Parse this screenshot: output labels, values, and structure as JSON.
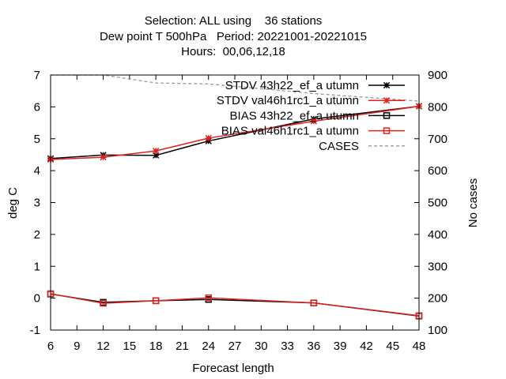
{
  "header": {
    "line1": "Selection: ALL using    36 stations",
    "line2": "Dew point T 500hPa   Period: 20221001-20221015",
    "line3": "Hours:  00,06,12,18"
  },
  "chart_data": {
    "type": "line",
    "xlabel": "Forecast length",
    "ylabel": "deg C",
    "y2label": "No cases",
    "xlim": [
      6,
      48
    ],
    "ylim": [
      -1,
      7
    ],
    "y2lim": [
      100,
      900
    ],
    "xticks": [
      "6",
      "9",
      "12",
      "15",
      "18",
      "21",
      "24",
      "27",
      "30",
      "33",
      "36",
      "39",
      "42",
      "45",
      "48"
    ],
    "yticks": [
      "-1",
      "0",
      "1",
      "2",
      "3",
      "4",
      "5",
      "6",
      "7"
    ],
    "y2ticks": [
      "100",
      "200",
      "300",
      "400",
      "500",
      "600",
      "700",
      "800",
      "900"
    ],
    "x": [
      6,
      12,
      18,
      24,
      36,
      48
    ],
    "legend_position": "top-right",
    "series": [
      {
        "name": "STDV 43h22_ef_a utumn",
        "color": "#000000",
        "marker": "star",
        "axis": "y1",
        "values": [
          4.38,
          4.49,
          4.48,
          4.93,
          5.62,
          6.02
        ]
      },
      {
        "name": "STDV val46h1rc1_a utumn",
        "color": "#dd2222",
        "marker": "star",
        "axis": "y1",
        "values": [
          4.35,
          4.42,
          4.62,
          5.02,
          5.55,
          6.02
        ]
      },
      {
        "name": "BIAS 43h22_ef_a utumn",
        "color": "#000000",
        "marker": "square",
        "axis": "y1",
        "values": [
          0.13,
          -0.13,
          -0.08,
          -0.04,
          -0.15,
          -0.56
        ]
      },
      {
        "name": "BIAS val46h1rc1_a utumn",
        "color": "#dd2222",
        "marker": "square",
        "axis": "y1",
        "values": [
          0.14,
          -0.16,
          -0.08,
          0.01,
          -0.15,
          -0.55
        ]
      },
      {
        "name": "CASES",
        "color": "#999999",
        "marker": "none",
        "dashed": true,
        "axis": "y2",
        "x": [
          6,
          12,
          18,
          24,
          36,
          48
        ],
        "values": [
          900,
          900,
          875,
          872,
          842,
          818
        ]
      }
    ]
  }
}
